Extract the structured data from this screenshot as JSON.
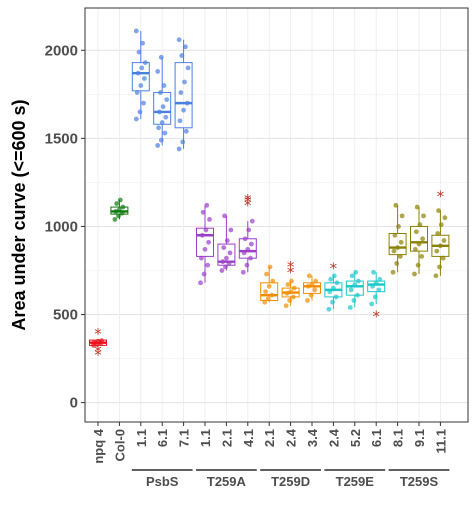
{
  "chart_data": {
    "type": "box",
    "title": "",
    "xlabel": "",
    "ylabel": "Area under curve (<=600 s)",
    "ylim": [
      -110,
      2240
    ],
    "yticks": [
      0,
      500,
      1000,
      1500,
      2000
    ],
    "grid": true,
    "outlier_marker": "*",
    "outlier_color": "#c0392b",
    "categories": [
      "npq 4",
      "Col-0",
      "1.1",
      "6.1",
      "7.1",
      "1.1",
      "2.1",
      "4.1",
      "2.1",
      "2.4",
      "3.4",
      "2.4",
      "5.2",
      "6.1",
      "8.1",
      "9.1",
      "11.1"
    ],
    "groups": [
      {
        "label": "PsbS",
        "start": 2,
        "end": 4
      },
      {
        "label": "T259A",
        "start": 5,
        "end": 7
      },
      {
        "label": "T259D",
        "start": 8,
        "end": 10
      },
      {
        "label": "T259E",
        "start": 11,
        "end": 13
      },
      {
        "label": "T259S",
        "start": 14,
        "end": 16
      }
    ],
    "series": [
      {
        "color": "#e8101a",
        "q1": 325,
        "median": 340,
        "q3": 355,
        "whisker_low": 320,
        "whisker_high": 360,
        "points": [
          325,
          330,
          338,
          342,
          348,
          352
        ],
        "outliers": [
          270,
          290,
          390
        ]
      },
      {
        "color": "#0e7a0e",
        "q1": 1070,
        "median": 1085,
        "q3": 1110,
        "whisker_low": 1040,
        "whisker_high": 1150,
        "points": [
          1040,
          1060,
          1075,
          1085,
          1095,
          1110,
          1130,
          1150
        ],
        "outliers": []
      },
      {
        "color": "#4a7fe0",
        "q1": 1770,
        "median": 1870,
        "q3": 1930,
        "whisker_low": 1610,
        "whisker_high": 2110,
        "points": [
          1610,
          1650,
          1700,
          1760,
          1800,
          1840,
          1870,
          1900,
          1930,
          1990,
          2040,
          2110
        ],
        "outliers": []
      },
      {
        "color": "#4a7fe0",
        "q1": 1580,
        "median": 1650,
        "q3": 1760,
        "whisker_low": 1460,
        "whisker_high": 1960,
        "points": [
          1460,
          1490,
          1530,
          1560,
          1590,
          1620,
          1650,
          1680,
          1720,
          1760,
          1800,
          1880,
          1960
        ],
        "outliers": []
      },
      {
        "color": "#4a7fe0",
        "q1": 1560,
        "median": 1700,
        "q3": 1930,
        "whisker_low": 1440,
        "whisker_high": 2060,
        "points": [
          1440,
          1480,
          1540,
          1600,
          1660,
          1700,
          1760,
          1820,
          1900,
          1970,
          2020,
          2060
        ],
        "outliers": []
      },
      {
        "color": "#9b3fc9",
        "q1": 830,
        "median": 950,
        "q3": 990,
        "whisker_low": 680,
        "whisker_high": 1120,
        "points": [
          680,
          730,
          780,
          820,
          870,
          910,
          950,
          980,
          1040,
          1080,
          1120
        ],
        "outliers": []
      },
      {
        "color": "#9b3fc9",
        "q1": 780,
        "median": 800,
        "q3": 900,
        "whisker_low": 750,
        "whisker_high": 1060,
        "points": [
          750,
          770,
          790,
          800,
          820,
          850,
          880,
          920,
          980,
          1060
        ],
        "outliers": []
      },
      {
        "color": "#9b3fc9",
        "q1": 820,
        "median": 860,
        "q3": 930,
        "whisker_low": 740,
        "whisker_high": 1030,
        "points": [
          740,
          780,
          820,
          850,
          870,
          900,
          930,
          980,
          1030
        ],
        "outliers": [
          1120,
          1140,
          1150
        ]
      },
      {
        "color": "#f08c00",
        "q1": 580,
        "median": 610,
        "q3": 680,
        "whisker_low": 570,
        "whisker_high": 770,
        "points": [
          570,
          590,
          610,
          630,
          660,
          690,
          730,
          770
        ],
        "outliers": []
      },
      {
        "color": "#f08c00",
        "q1": 600,
        "median": 625,
        "q3": 650,
        "whisker_low": 550,
        "whisker_high": 690,
        "points": [
          550,
          580,
          600,
          620,
          630,
          650,
          670,
          690
        ],
        "outliers": [
          740,
          770
        ]
      },
      {
        "color": "#f08c00",
        "q1": 620,
        "median": 660,
        "q3": 680,
        "whisker_low": 580,
        "whisker_high": 720,
        "points": [
          580,
          610,
          640,
          660,
          670,
          690,
          720
        ],
        "outliers": []
      },
      {
        "color": "#18c7c9",
        "q1": 600,
        "median": 640,
        "q3": 680,
        "whisker_low": 530,
        "whisker_high": 720,
        "points": [
          530,
          570,
          600,
          630,
          650,
          680,
          700,
          720
        ],
        "outliers": [
          760
        ]
      },
      {
        "color": "#18c7c9",
        "q1": 610,
        "median": 660,
        "q3": 690,
        "whisker_low": 540,
        "whisker_high": 740,
        "points": [
          540,
          580,
          610,
          640,
          670,
          690,
          720,
          740
        ],
        "outliers": []
      },
      {
        "color": "#18c7c9",
        "q1": 630,
        "median": 670,
        "q3": 690,
        "whisker_low": 560,
        "whisker_high": 740,
        "points": [
          560,
          600,
          640,
          660,
          680,
          700,
          740
        ],
        "outliers": [
          490
        ]
      },
      {
        "color": "#8a8000",
        "q1": 840,
        "median": 880,
        "q3": 960,
        "whisker_low": 740,
        "whisker_high": 1120,
        "points": [
          740,
          790,
          830,
          860,
          880,
          910,
          950,
          1000,
          1060,
          1120
        ],
        "outliers": []
      },
      {
        "color": "#8a8000",
        "q1": 860,
        "median": 910,
        "q3": 1000,
        "whisker_low": 730,
        "whisker_high": 1110,
        "points": [
          730,
          780,
          830,
          870,
          900,
          930,
          970,
          1010,
          1060,
          1110
        ],
        "outliers": []
      },
      {
        "color": "#8a8000",
        "q1": 830,
        "median": 890,
        "q3": 950,
        "whisker_low": 720,
        "whisker_high": 1090,
        "points": [
          720,
          770,
          820,
          860,
          890,
          920,
          960,
          1010,
          1050,
          1090
        ],
        "outliers": [
          1170
        ]
      }
    ]
  }
}
